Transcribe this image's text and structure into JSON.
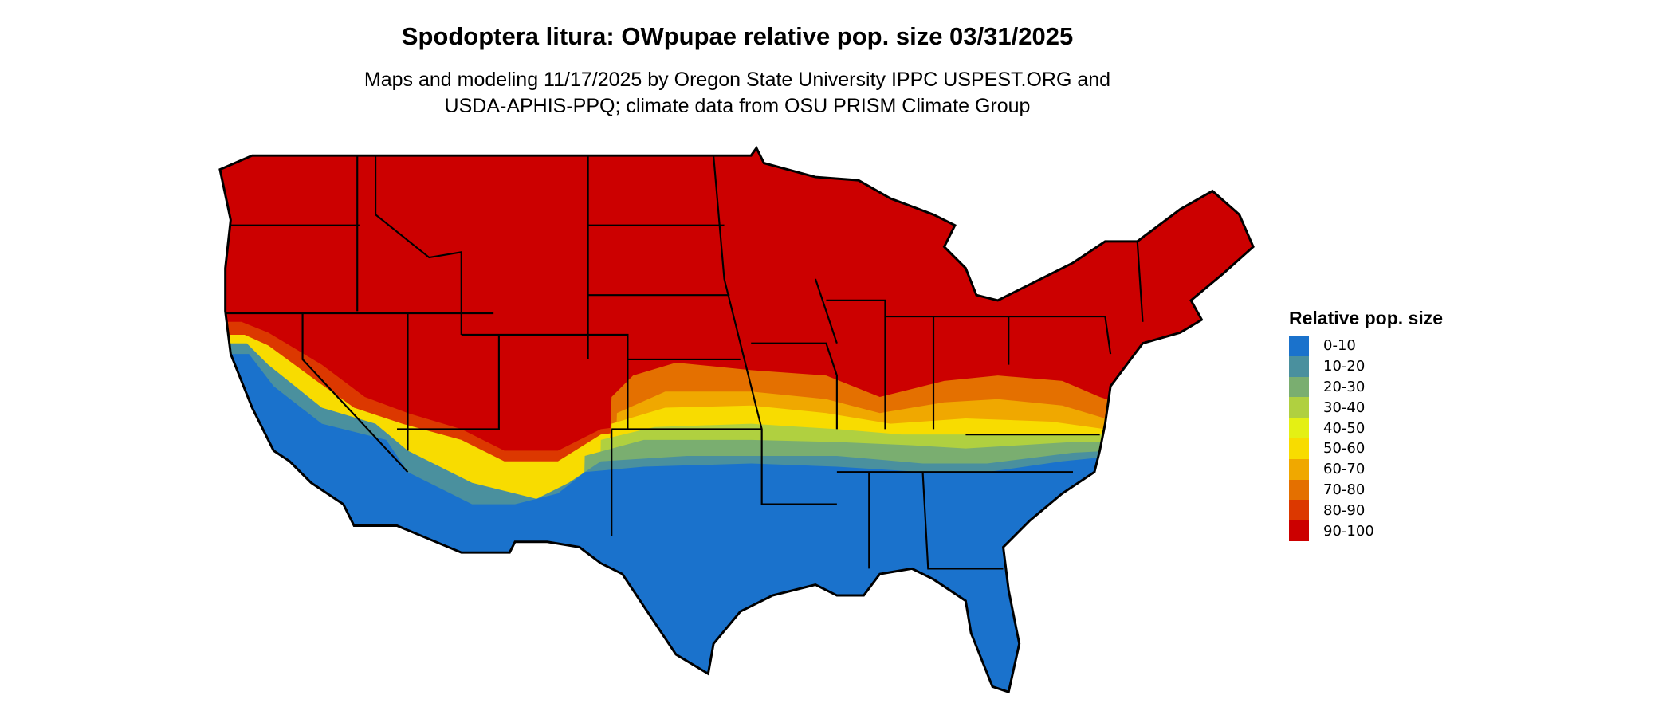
{
  "title": "Spodoptera litura: OWpupae relative pop. size 03/31/2025",
  "subtitle_line1": "Maps and modeling 11/17/2025 by Oregon State University IPPC USPEST.ORG and",
  "subtitle_line2": "USDA-APHIS-PPQ; climate data from OSU PRISM Climate Group",
  "legend": {
    "title": "Relative pop. size",
    "items": [
      {
        "label": "0-10",
        "color": "#1a72cc"
      },
      {
        "label": "10-20",
        "color": "#4a909e"
      },
      {
        "label": "20-30",
        "color": "#7aae70"
      },
      {
        "label": "30-40",
        "color": "#b0d040"
      },
      {
        "label": "40-50",
        "color": "#e4f014"
      },
      {
        "label": "50-60",
        "color": "#f8dc00"
      },
      {
        "label": "60-70",
        "color": "#f0a800"
      },
      {
        "label": "70-80",
        "color": "#e47000"
      },
      {
        "label": "80-90",
        "color": "#dc3800"
      },
      {
        "label": "90-100",
        "color": "#cc0000"
      }
    ]
  }
}
